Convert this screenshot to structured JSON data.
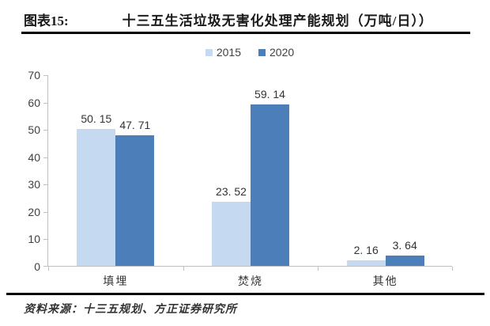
{
  "header": {
    "label": "图表15:",
    "title": "十三五生活垃圾无害化处理产能规划（万吨/日））"
  },
  "chart_data": {
    "type": "bar",
    "title": "十三五生活垃圾无害化处理产能规划（万吨/日））",
    "categories": [
      "填埋",
      "焚烧",
      "其他"
    ],
    "series": [
      {
        "name": "2015",
        "color": "#c5d9f1",
        "values": [
          50.15,
          23.52,
          2.16
        ],
        "labels": [
          "50. 15",
          "23. 52",
          "2. 16"
        ]
      },
      {
        "name": "2020",
        "color": "#4c7eba",
        "values": [
          47.71,
          59.14,
          3.64
        ],
        "labels": [
          "47. 71",
          "59. 14",
          "3. 64"
        ]
      }
    ],
    "xlabel": "",
    "ylabel": "",
    "ylim": [
      0,
      70
    ],
    "yticks": [
      0,
      10,
      20,
      30,
      40,
      50,
      60,
      70
    ],
    "grid": false,
    "legend_position": "top"
  },
  "footer": {
    "source": "资料来源：十三五规划、方正证券研究所"
  },
  "colors": {
    "axis": "#bfbfbf",
    "text": "#404040",
    "rule": "#000000",
    "series_2015": "#c5d9f1",
    "series_2020": "#4c7eba"
  }
}
